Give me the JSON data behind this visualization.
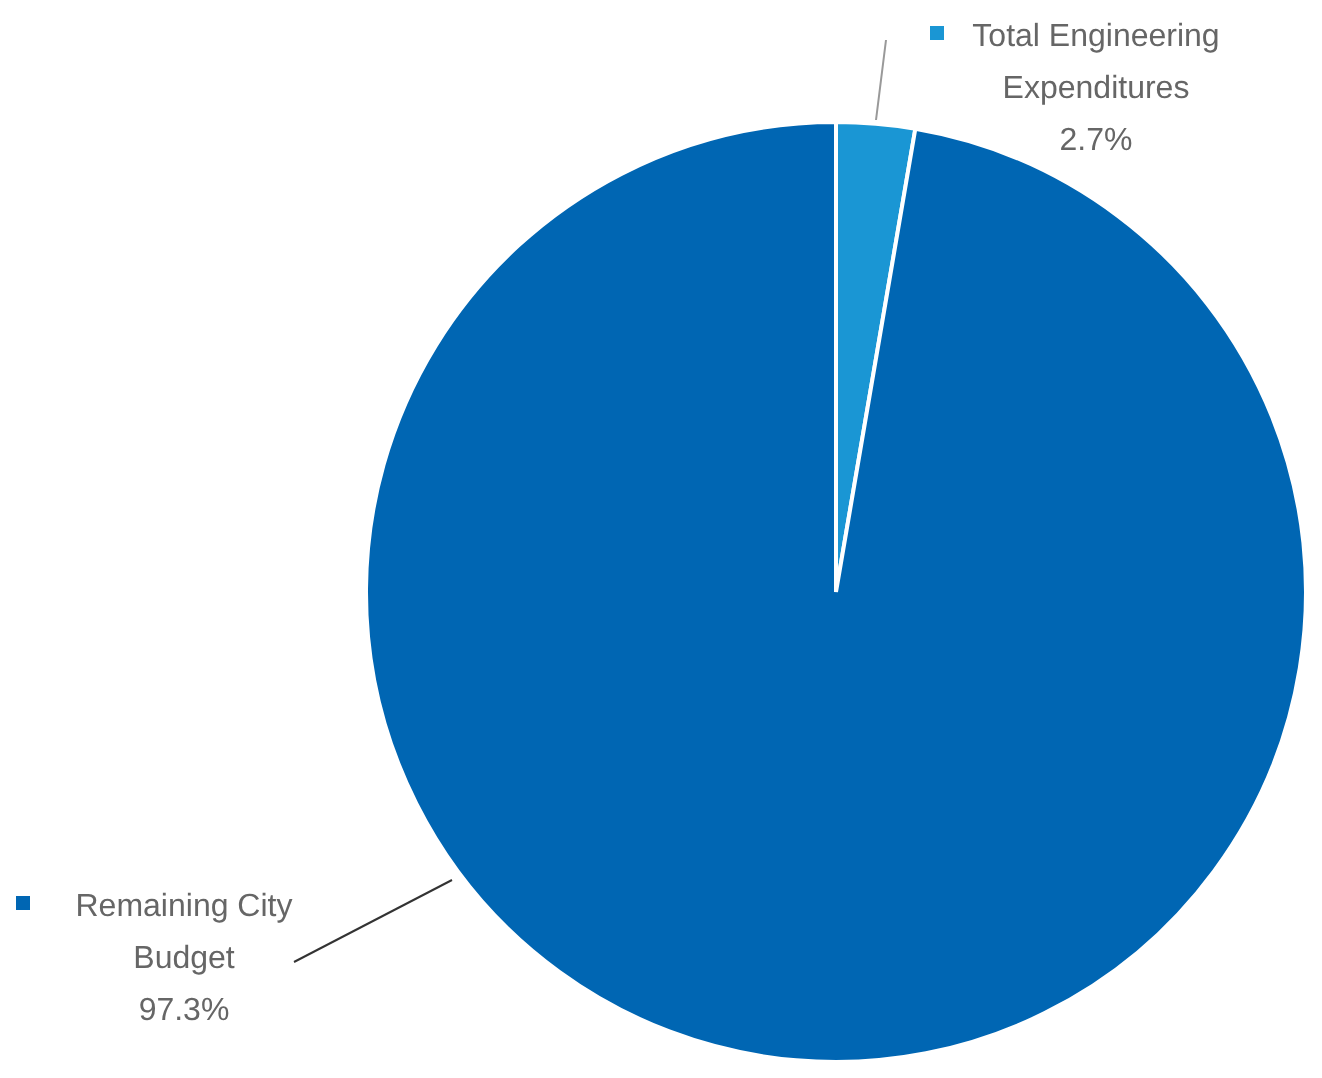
{
  "chart_data": {
    "type": "pie",
    "categories": [
      "Total Engineering Expenditures",
      "Remaining City Budget"
    ],
    "values": [
      2.7,
      97.3
    ],
    "value_labels": [
      "2.7%",
      "97.3%"
    ],
    "colors": [
      "#1a96d4",
      "#0066b3"
    ],
    "legend": "top left"
  }
}
